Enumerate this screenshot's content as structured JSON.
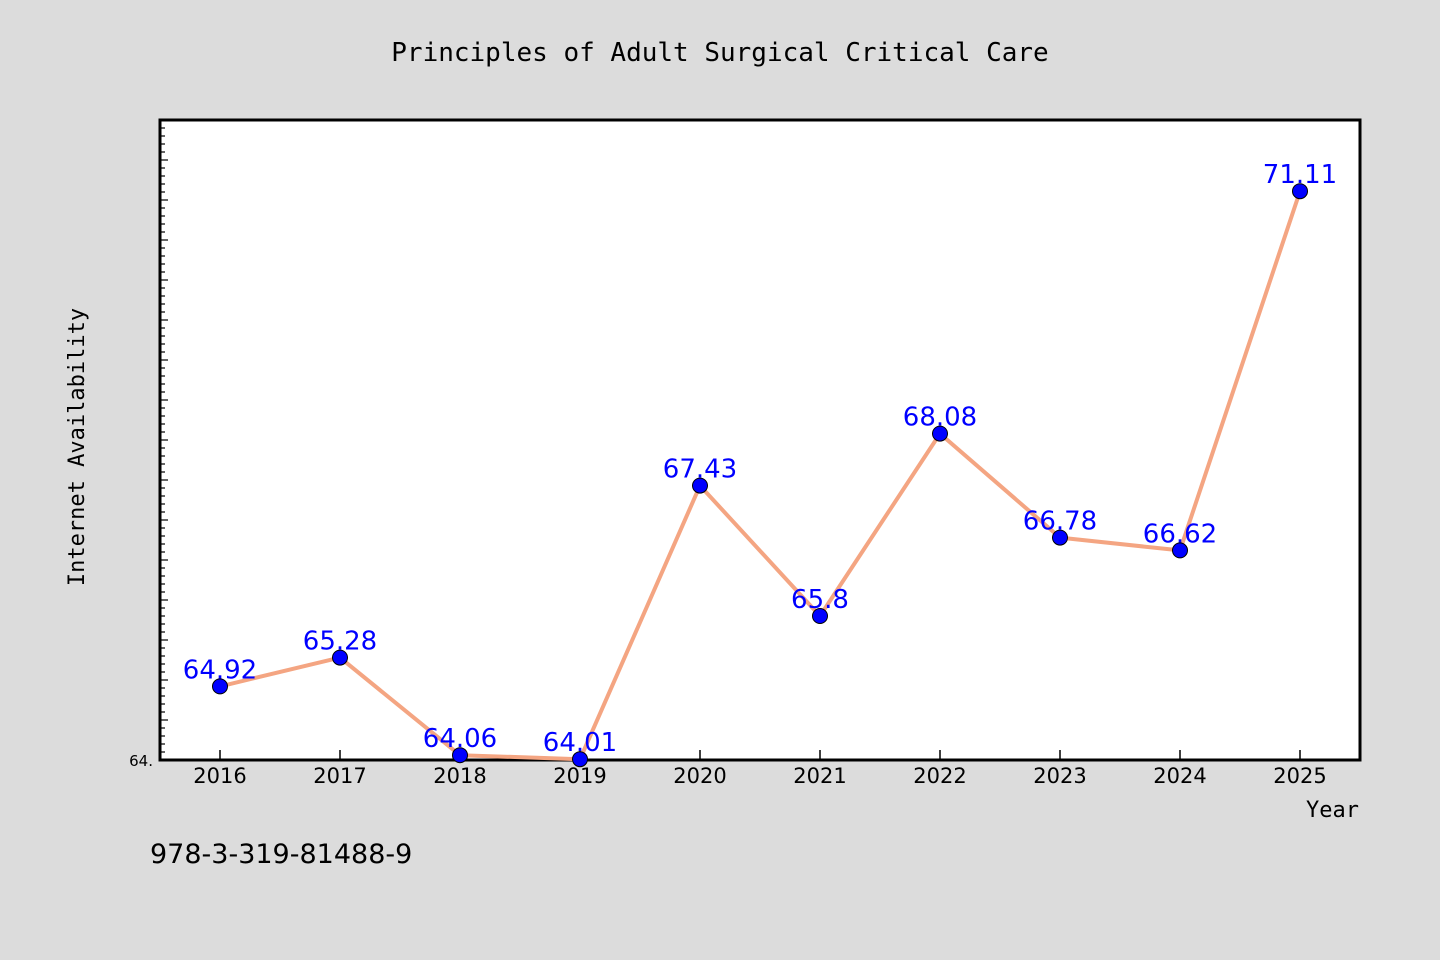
{
  "page": {
    "footer_note": "978-3-319-81488-9",
    "background_color": "#dcdcdc",
    "plot_background_color": "#ffffff"
  },
  "chart_data": {
    "type": "line",
    "title": "Principles of Adult Surgical Critical Care",
    "xlabel": "Year",
    "ylabel": "Internet Availability",
    "categories": [
      "2016",
      "2017",
      "2018",
      "2019",
      "2020",
      "2021",
      "2022",
      "2023",
      "2024",
      "2025"
    ],
    "series": [
      {
        "values": [
          64.92,
          65.28,
          64.06,
          64.01,
          67.43,
          65.8,
          68.08,
          66.78,
          66.62,
          71.11
        ],
        "data_labels": [
          "64.92",
          "65.28",
          "64.06",
          "64.01",
          "67.43",
          "65.8",
          "68.08",
          "66.78",
          "66.62",
          "71.11"
        ],
        "line_color": "#f4a582",
        "marker_color": "#0000ff",
        "label_color": "#0000ff"
      }
    ],
    "ylim": [
      64.0,
      72.0
    ],
    "y_tick_label_shown": "64.",
    "grid": false,
    "legend": "none"
  }
}
